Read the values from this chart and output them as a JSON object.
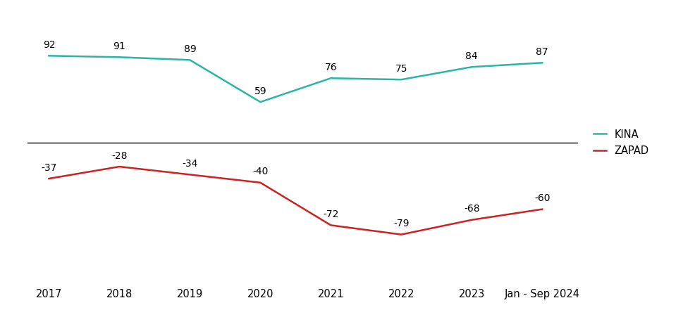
{
  "x_labels": [
    "2017",
    "2018",
    "2019",
    "2020",
    "2021",
    "2022",
    "2023",
    "Jan - Sep 2024"
  ],
  "x_positions": [
    0,
    1,
    2,
    3,
    4,
    5,
    6,
    7
  ],
  "kina_values": [
    92,
    91,
    89,
    59,
    76,
    75,
    84,
    87
  ],
  "zapad_values": [
    -37,
    -28,
    -34,
    -40,
    -72,
    -79,
    -68,
    -60
  ],
  "kina_color": "#2ab5a5",
  "zapad_color": "#cc2222",
  "legend_kina": "KINA",
  "legend_zapad": "ZAPAD",
  "background_color": "#ffffff",
  "label_fontsize": 10,
  "axis_fontsize": 10.5,
  "line_width": 1.8,
  "kina_ylim": [
    30,
    125
  ],
  "zapad_ylim": [
    -110,
    -10
  ]
}
